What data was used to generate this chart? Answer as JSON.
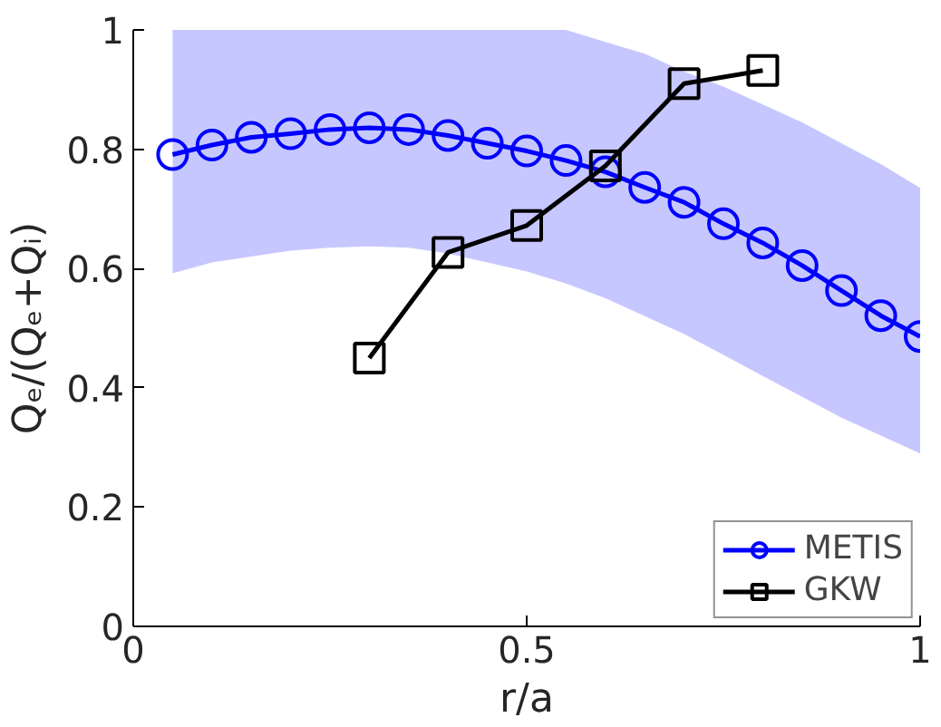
{
  "chart_data": {
    "type": "line",
    "xlabel": "r/a",
    "ylabel": "Qₑ/(Qₑ+Qᵢ)",
    "xlim": [
      0,
      1
    ],
    "ylim": [
      0,
      1
    ],
    "xticks": [
      0,
      0.5,
      1
    ],
    "yticks": [
      0,
      0.2,
      0.4,
      0.6,
      0.8,
      1
    ],
    "grid": false,
    "legend": "bottom right",
    "line_style": "solid",
    "series": [
      {
        "name": "METIS",
        "color": "#0000ff",
        "marker": "circle",
        "x": [
          0.05,
          0.1,
          0.15,
          0.2,
          0.25,
          0.3,
          0.35,
          0.4,
          0.45,
          0.5,
          0.55,
          0.6,
          0.65,
          0.7,
          0.75,
          0.8,
          0.85,
          0.9,
          0.95,
          1.0
        ],
        "values": [
          0.791,
          0.807,
          0.82,
          0.826,
          0.833,
          0.836,
          0.833,
          0.823,
          0.81,
          0.797,
          0.781,
          0.762,
          0.736,
          0.711,
          0.675,
          0.643,
          0.605,
          0.563,
          0.521,
          0.486
        ],
        "lower": [
          0.592,
          0.61,
          0.62,
          0.63,
          0.635,
          0.637,
          0.635,
          0.625,
          0.61,
          0.595,
          0.575,
          0.55,
          0.52,
          0.49,
          0.455,
          0.42,
          0.385,
          0.35,
          0.32,
          0.29
        ],
        "upper": [
          1.0,
          1.0,
          1.0,
          1.0,
          1.0,
          1.0,
          1.0,
          1.0,
          1.0,
          1.0,
          1.0,
          0.98,
          0.96,
          0.93,
          0.905,
          0.875,
          0.845,
          0.81,
          0.775,
          0.735
        ]
      },
      {
        "name": "GKW",
        "color": "#000000",
        "marker": "square",
        "x": [
          0.3,
          0.4,
          0.5,
          0.6,
          0.7,
          0.8
        ],
        "values": [
          0.45,
          0.627,
          0.672,
          0.772,
          0.91,
          0.932
        ]
      }
    ]
  }
}
